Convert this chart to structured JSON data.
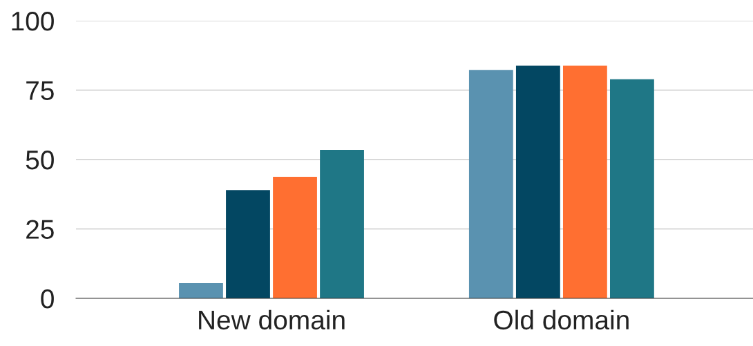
{
  "chart_data": {
    "type": "bar",
    "categories": [
      "New domain",
      "Old domain"
    ],
    "series": [
      {
        "color": "#5a92b0",
        "values": [
          5.5,
          82.3
        ]
      },
      {
        "color": "#034762",
        "values": [
          39,
          83.8
        ]
      },
      {
        "color": "#ff6f31",
        "values": [
          43.8,
          83.8
        ]
      },
      {
        "color": "#1f7786",
        "values": [
          53.5,
          78.9
        ]
      }
    ],
    "ylim": [
      0,
      100
    ],
    "yticks": [
      0,
      25,
      50,
      75,
      100
    ],
    "grid": "y",
    "legend": false
  }
}
